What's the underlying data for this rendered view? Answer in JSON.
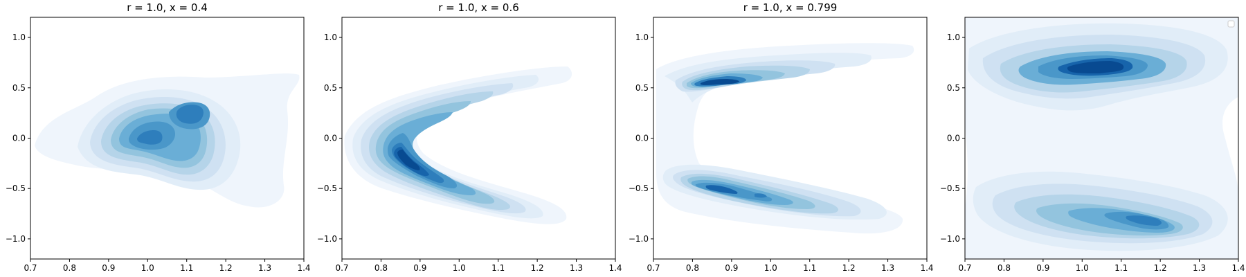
{
  "chart_data": [
    {
      "type": "heatmap",
      "subtype": "kde-contour",
      "title": "r = 1.0, x = 0.4",
      "colormap": "Blues",
      "xlim": [
        0.7,
        1.4
      ],
      "ylim": [
        -1.2,
        1.2
      ],
      "xticks": [
        0.7,
        0.8,
        0.9,
        1.0,
        1.1,
        1.2,
        1.3,
        1.4
      ],
      "yticks": [
        -1.0,
        -0.5,
        0.0,
        0.5,
        1.0
      ],
      "xtick_labels": [
        "0.7",
        "0.8",
        "0.9",
        "1.0",
        "1.1",
        "1.2",
        "1.3",
        "1.4"
      ],
      "ytick_labels": [
        "−1.0",
        "−0.5",
        "0.0",
        "0.5",
        "1.0"
      ],
      "grid": false,
      "legend": false,
      "density_modes": [
        {
          "x": 1.09,
          "y": 0.3,
          "level": 0.95
        },
        {
          "x": 1.01,
          "y": 0.0,
          "level": 0.9
        }
      ]
    },
    {
      "type": "heatmap",
      "subtype": "kde-contour",
      "title": "r = 1.0, x = 0.6",
      "colormap": "Blues",
      "xlim": [
        0.7,
        1.4
      ],
      "ylim": [
        -1.2,
        1.2
      ],
      "xticks": [
        0.7,
        0.8,
        0.9,
        1.0,
        1.1,
        1.2,
        1.3,
        1.4
      ],
      "yticks": [
        -1.0,
        -0.5,
        0.0,
        0.5,
        1.0
      ],
      "xtick_labels": [
        "0.7",
        "0.8",
        "0.9",
        "1.0",
        "1.1",
        "1.2",
        "1.3",
        "1.4"
      ],
      "ytick_labels": [
        "−1.0",
        "−0.5",
        "0.0",
        "0.5",
        "1.0"
      ],
      "grid": false,
      "legend": false,
      "density_modes": [
        {
          "x": 0.86,
          "y": -0.22,
          "level": 1.0
        },
        {
          "x": 0.93,
          "y": 0.28,
          "level": 0.55
        }
      ]
    },
    {
      "type": "heatmap",
      "subtype": "kde-contour",
      "title": "r = 1.0, x = 0.799",
      "colormap": "Blues",
      "xlim": [
        0.7,
        1.4
      ],
      "ylim": [
        -1.2,
        1.2
      ],
      "xticks": [
        0.7,
        0.8,
        0.9,
        1.0,
        1.1,
        1.2,
        1.3,
        1.4
      ],
      "yticks": [
        -1.0,
        -0.5,
        0.0,
        0.5,
        1.0
      ],
      "xtick_labels": [
        "0.7",
        "0.8",
        "0.9",
        "1.0",
        "1.1",
        "1.2",
        "1.3",
        "1.4"
      ],
      "ytick_labels": [
        "−1.0",
        "−0.5",
        "0.0",
        "0.5",
        "1.0"
      ],
      "grid": false,
      "legend": false,
      "density_modes": [
        {
          "x": 0.89,
          "y": 0.58,
          "level": 1.0
        },
        {
          "x": 0.89,
          "y": -0.55,
          "level": 0.95
        }
      ]
    },
    {
      "type": "heatmap",
      "subtype": "kde-contour",
      "title": "",
      "colormap": "Blues",
      "xlim": [
        0.7,
        1.4
      ],
      "ylim": [
        -1.2,
        1.2
      ],
      "xticks": [
        0.7,
        0.8,
        0.9,
        1.0,
        1.1,
        1.2,
        1.3,
        1.4
      ],
      "yticks": [
        -1.0,
        -0.5,
        0.0,
        0.5,
        1.0
      ],
      "xtick_labels": [
        "0.7",
        "0.8",
        "0.9",
        "1.0",
        "1.1",
        "1.2",
        "1.3",
        "1.4"
      ],
      "ytick_labels": [
        "−1.0",
        "−0.5",
        "0.0",
        "0.5",
        "1.0"
      ],
      "grid": false,
      "legend": true,
      "legend_placement": "top-right",
      "legend_entries": [],
      "density_modes": [
        {
          "x": 1.02,
          "y": 0.78,
          "level": 1.0
        },
        {
          "x": 1.12,
          "y": -0.82,
          "level": 0.75
        }
      ]
    }
  ],
  "colors": {
    "levels": [
      "#eff5fc",
      "#e1edf8",
      "#cfe1f2",
      "#b5d4e9",
      "#93c4de",
      "#6aaed6",
      "#4a97c9",
      "#2e7ebc",
      "#1764ab",
      "#084a91"
    ],
    "frame": "#000000"
  }
}
